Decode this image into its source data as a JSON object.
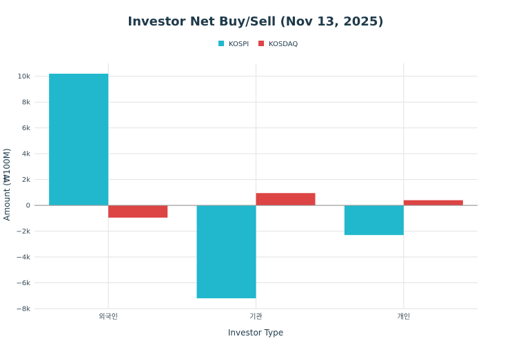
{
  "chart_data": {
    "type": "bar",
    "title": "Investor Net Buy/Sell (Nov 13, 2025)",
    "xlabel": "Investor Type",
    "ylabel": "Amount (₩100M)",
    "categories": [
      "외국인",
      "기관",
      "개인"
    ],
    "series": [
      {
        "name": "KOSPI",
        "color": "#21b8cd",
        "values": [
          10200,
          -7200,
          -2300
        ]
      },
      {
        "name": "KOSDAQ",
        "color": "#dd4444",
        "values": [
          -950,
          950,
          400
        ]
      }
    ],
    "ylim": [
      -8000,
      11000
    ],
    "yticks": [
      -8000,
      -6000,
      -4000,
      -2000,
      0,
      2000,
      4000,
      6000,
      8000,
      10000
    ],
    "ytick_labels": [
      "−8k",
      "−6k",
      "−4k",
      "−2k",
      "0",
      "2k",
      "4k",
      "6k",
      "8k",
      "10k"
    ],
    "grid": true,
    "legend_position": "top-center"
  }
}
